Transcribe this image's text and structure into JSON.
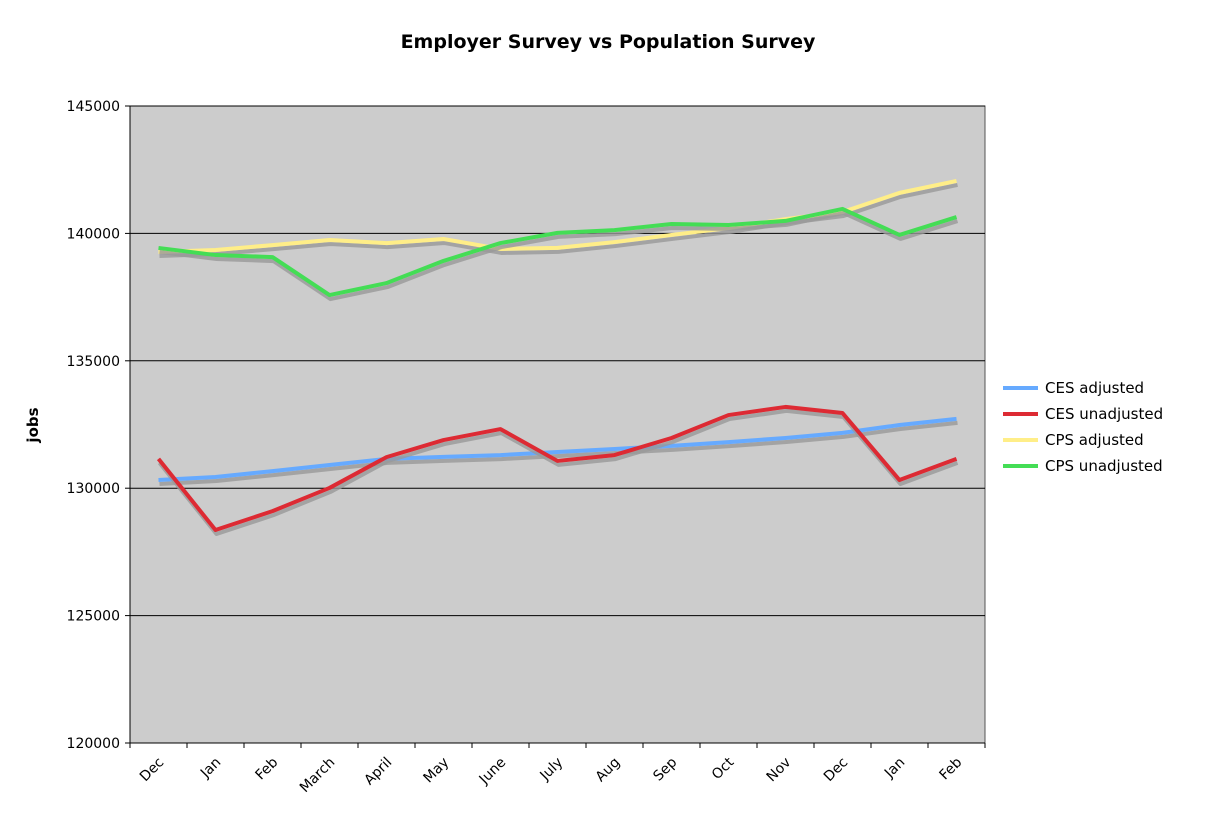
{
  "chart_data": {
    "type": "line",
    "title": "Employer Survey vs Population Survey",
    "xlabel": "",
    "ylabel": "jobs",
    "ylim": [
      120000,
      145000
    ],
    "yticks": [
      120000,
      125000,
      130000,
      135000,
      140000,
      145000
    ],
    "grid": true,
    "legend": "right",
    "background": "#cccccc",
    "categories": [
      "Dec",
      "Jan",
      "Feb",
      "March",
      "April",
      "May",
      "June",
      "July",
      "Aug",
      "Sep",
      "Oct",
      "Nov",
      "Dec",
      "Jan",
      "Feb"
    ],
    "series": [
      {
        "name": "CES adjusted",
        "color": "#66aaff",
        "values": [
          130320,
          130440,
          130670,
          130910,
          131150,
          131230,
          131300,
          131420,
          131540,
          131660,
          131810,
          131970,
          132170,
          132480,
          132720
        ]
      },
      {
        "name": "CES unadjusted",
        "color": "#dd2a33",
        "values": [
          131150,
          128360,
          129100,
          130010,
          131220,
          131890,
          132320,
          131070,
          131300,
          131970,
          132870,
          133190,
          132950,
          130320,
          131150
        ]
      },
      {
        "name": "CPS adjusted",
        "color": "#ffee88",
        "values": [
          139270,
          139350,
          139540,
          139740,
          139620,
          139780,
          139390,
          139430,
          139660,
          139940,
          140210,
          140560,
          140840,
          141590,
          142060
        ]
      },
      {
        "name": "CPS unadjusted",
        "color": "#44dd55",
        "values": [
          139430,
          139150,
          139070,
          137580,
          138050,
          138920,
          139620,
          140020,
          140130,
          140370,
          140330,
          140490,
          140960,
          139940,
          140640
        ]
      }
    ]
  }
}
